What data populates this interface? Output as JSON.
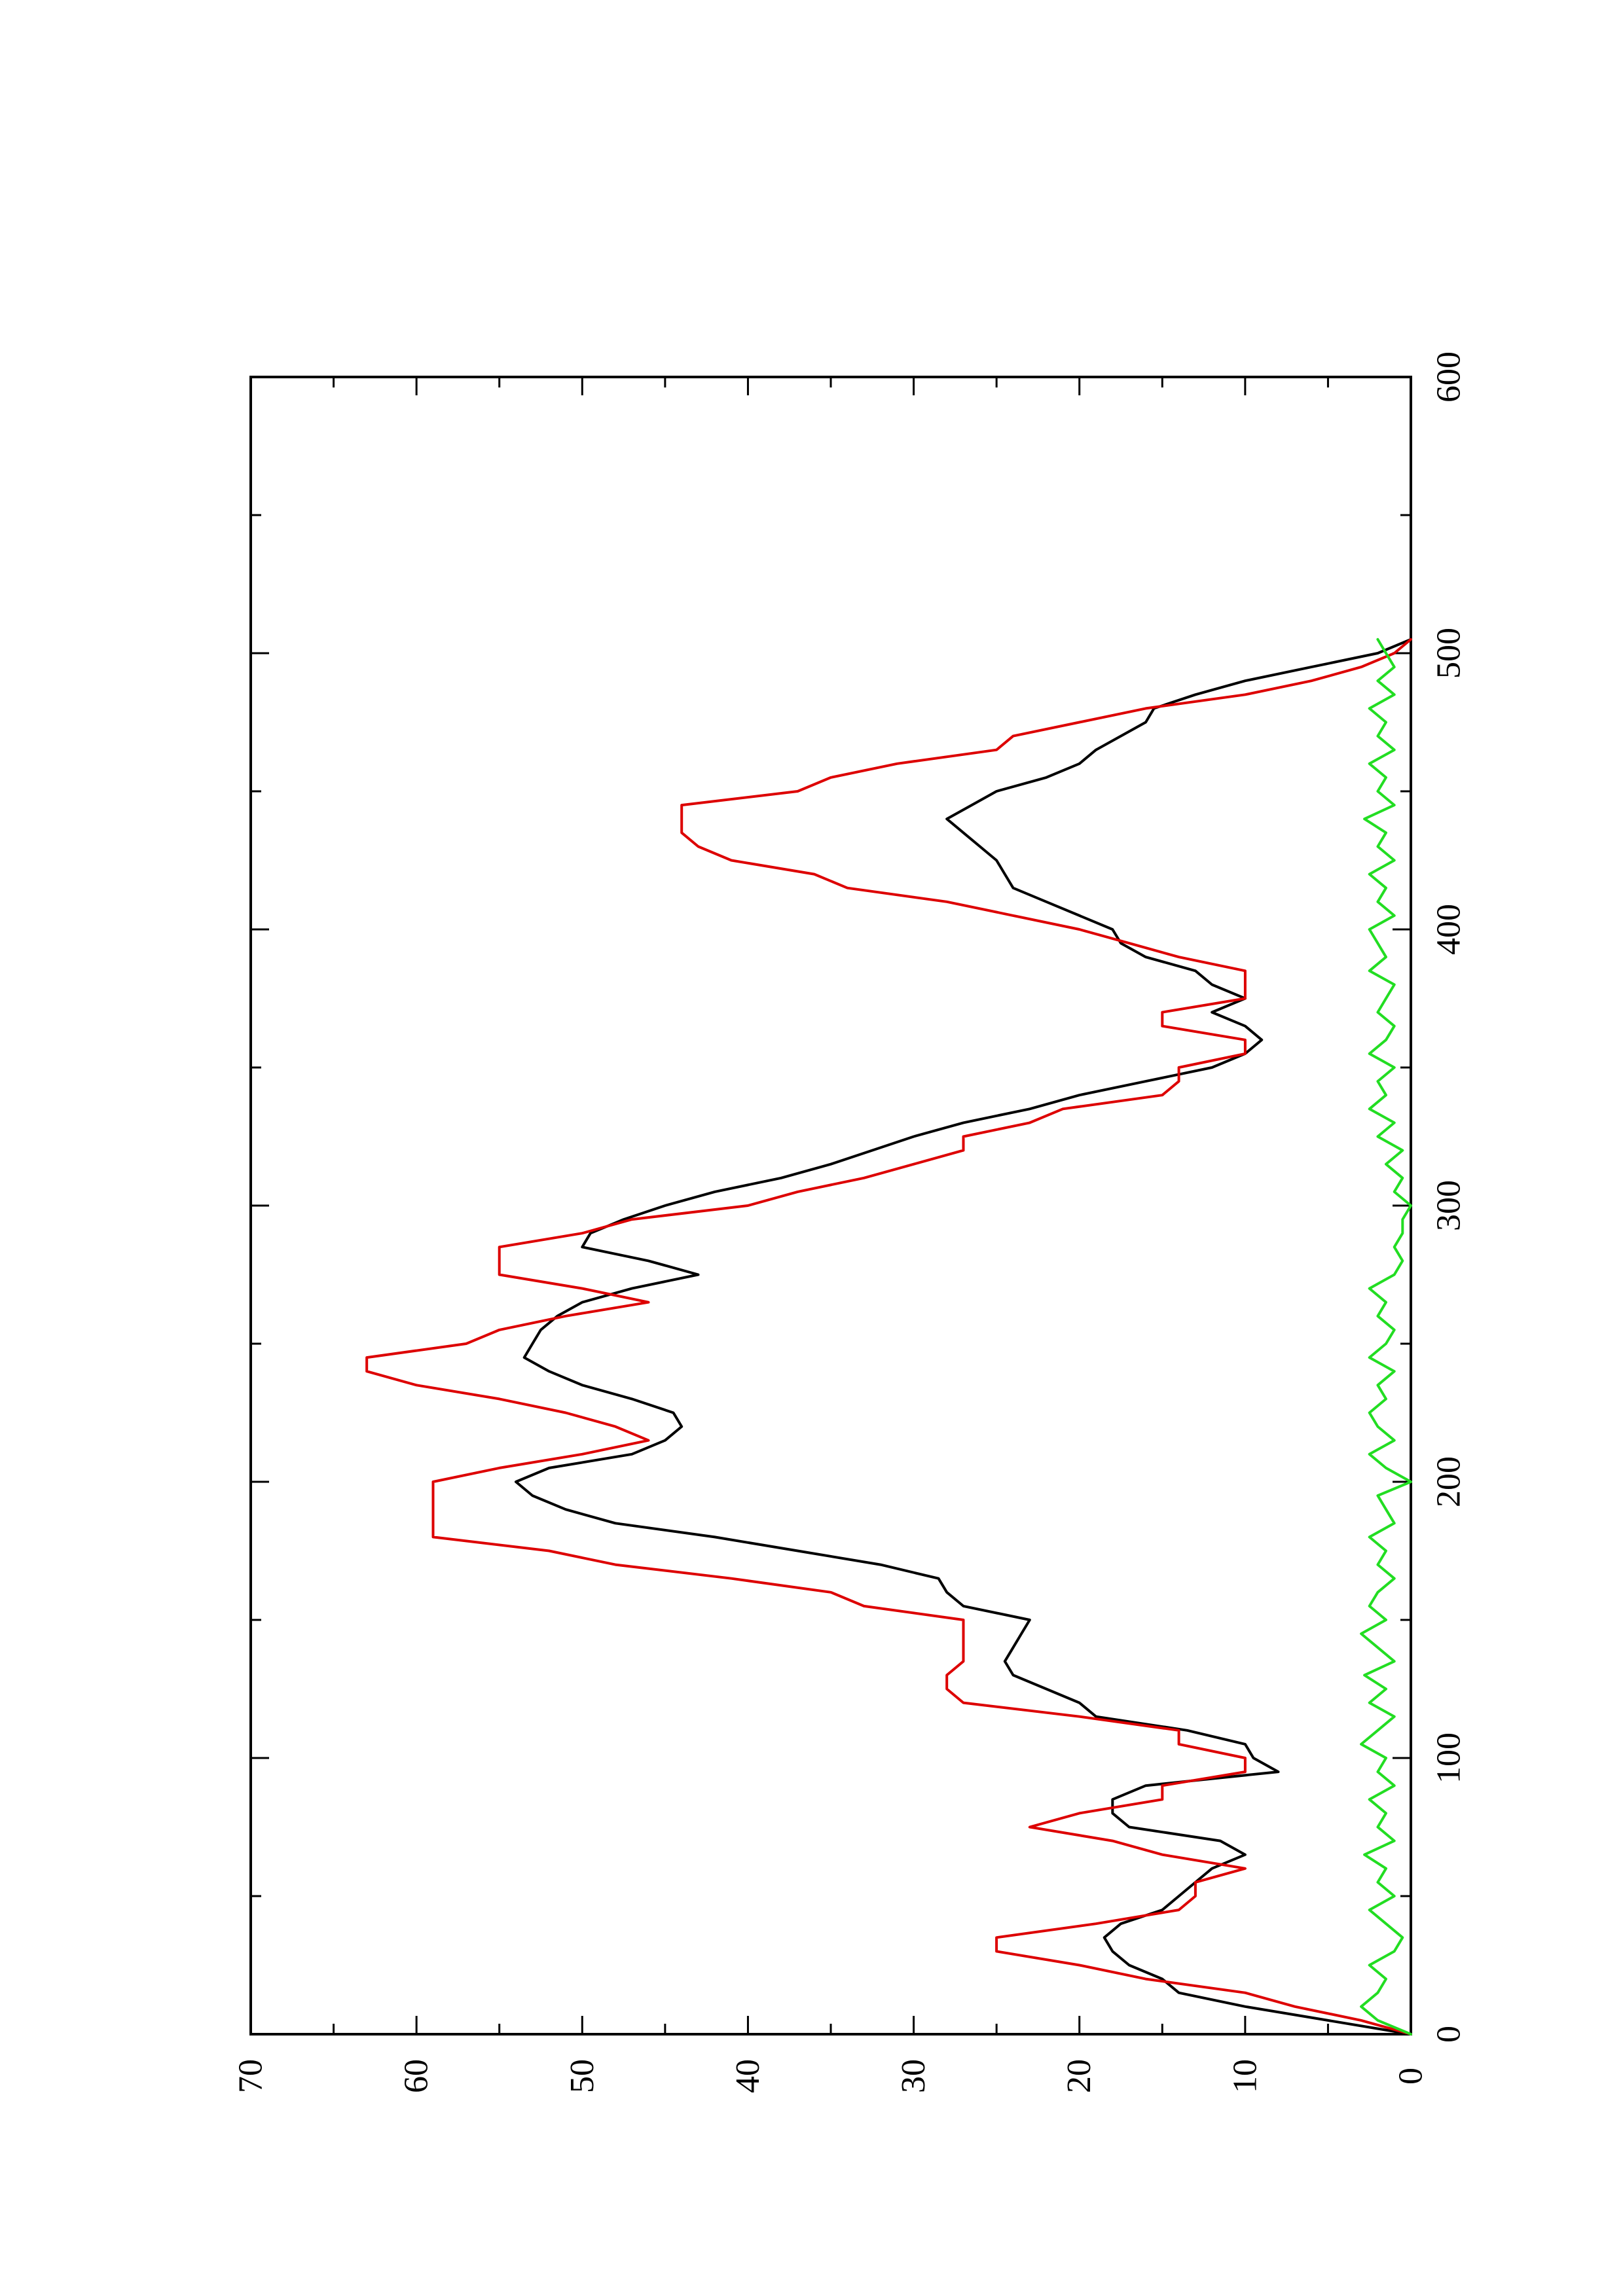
{
  "chart_data": {
    "type": "line",
    "orientation": "rotated-90-ccw",
    "title": "",
    "xlabel": "",
    "ylabel": "",
    "xlim": [
      0,
      600
    ],
    "ylim": [
      0,
      70
    ],
    "x_ticks": [
      0,
      100,
      200,
      300,
      400,
      500,
      600
    ],
    "y_ticks": [
      0,
      10,
      20,
      30,
      40,
      50,
      60,
      70
    ],
    "x_tick_labels": [
      "0",
      "100",
      "200",
      "300",
      "400",
      "500",
      "600"
    ],
    "y_tick_labels": [
      "0",
      "10",
      "20",
      "30",
      "40",
      "50",
      "60",
      "70"
    ],
    "grid": false,
    "legend": "none",
    "series": [
      {
        "color": "#000000",
        "x": [
          0,
          5,
          10,
          15,
          20,
          25,
          30,
          35,
          40,
          45,
          50,
          55,
          60,
          65,
          70,
          75,
          80,
          85,
          90,
          95,
          100,
          105,
          110,
          115,
          120,
          125,
          130,
          135,
          140,
          145,
          150,
          155,
          160,
          165,
          170,
          175,
          180,
          185,
          190,
          195,
          200,
          205,
          210,
          215,
          220,
          225,
          230,
          235,
          240,
          245,
          250,
          255,
          260,
          265,
          270,
          275,
          280,
          285,
          290,
          295,
          300,
          305,
          310,
          315,
          320,
          325,
          330,
          335,
          340,
          345,
          350,
          355,
          360,
          365,
          370,
          375,
          380,
          385,
          390,
          395,
          400,
          405,
          410,
          415,
          420,
          425,
          430,
          435,
          440,
          445,
          450,
          455,
          460,
          465,
          470,
          475,
          480,
          485,
          490,
          495,
          500,
          505
        ],
        "y": [
          0,
          5,
          10,
          14,
          15,
          17,
          18,
          18.5,
          17.5,
          15,
          14,
          13,
          12,
          10,
          11.5,
          17,
          18,
          18,
          16,
          8,
          9.5,
          10,
          13.5,
          19,
          20,
          22,
          24,
          24.5,
          24,
          23.5,
          23,
          27,
          28,
          28.5,
          32,
          37,
          42,
          48,
          51,
          53,
          54,
          52,
          47,
          45,
          44,
          44.5,
          47,
          50,
          52,
          53.5,
          53,
          52.5,
          51.5,
          50,
          47,
          43,
          46,
          50,
          49.5,
          47.5,
          45,
          42,
          38,
          35,
          32.5,
          30,
          27,
          23,
          20,
          16,
          12,
          10,
          9,
          10,
          12,
          10,
          12,
          13,
          16,
          17.5,
          18,
          20,
          22,
          24,
          24.5,
          25,
          26,
          27,
          28,
          26.5,
          25,
          22,
          20,
          19,
          17.5,
          16,
          15.5,
          13,
          10,
          6,
          2,
          0
        ]
      },
      {
        "color": "#dd0000",
        "x": [
          0,
          5,
          10,
          15,
          20,
          25,
          30,
          35,
          40,
          45,
          50,
          55,
          60,
          65,
          70,
          75,
          80,
          85,
          90,
          95,
          100,
          105,
          110,
          115,
          120,
          125,
          130,
          135,
          140,
          145,
          150,
          155,
          160,
          165,
          170,
          175,
          180,
          185,
          190,
          195,
          200,
          205,
          210,
          215,
          220,
          225,
          230,
          235,
          240,
          245,
          250,
          255,
          260,
          265,
          270,
          275,
          280,
          285,
          290,
          295,
          300,
          305,
          310,
          315,
          320,
          325,
          330,
          335,
          340,
          345,
          350,
          355,
          360,
          365,
          370,
          375,
          380,
          385,
          390,
          395,
          400,
          405,
          410,
          415,
          420,
          425,
          430,
          435,
          440,
          445,
          450,
          455,
          460,
          465,
          470,
          475,
          480,
          485,
          490,
          495,
          500,
          505
        ],
        "y": [
          0,
          3,
          7,
          10,
          16,
          20,
          25,
          25,
          19,
          14,
          13,
          13,
          10,
          15,
          18,
          23,
          20,
          15,
          15,
          10,
          10,
          14,
          14,
          20,
          27,
          28,
          28,
          27,
          27,
          27,
          27,
          33,
          35,
          41,
          48,
          52,
          59,
          59,
          59,
          59,
          59,
          55,
          50,
          46,
          48,
          51,
          55,
          60,
          63,
          63,
          57,
          55,
          51,
          46,
          50,
          55,
          55,
          55,
          50,
          47,
          40,
          37,
          33,
          30,
          27,
          27,
          23,
          21,
          15,
          14,
          14,
          10,
          10,
          15,
          15,
          10,
          10,
          10,
          14,
          17,
          20,
          24,
          28,
          34,
          36,
          41,
          43,
          44,
          44,
          44,
          37,
          35,
          31,
          25,
          24,
          20,
          16,
          10,
          6,
          3,
          1,
          0
        ]
      },
      {
        "color": "#22dd22",
        "x": [
          0,
          5,
          10,
          15,
          20,
          25,
          30,
          35,
          40,
          45,
          50,
          55,
          60,
          65,
          70,
          75,
          80,
          85,
          90,
          95,
          100,
          105,
          110,
          115,
          120,
          125,
          130,
          135,
          140,
          145,
          150,
          155,
          160,
          165,
          170,
          175,
          180,
          185,
          190,
          195,
          200,
          205,
          210,
          215,
          220,
          225,
          230,
          235,
          240,
          245,
          250,
          255,
          260,
          265,
          270,
          275,
          280,
          285,
          290,
          295,
          300,
          305,
          310,
          315,
          320,
          325,
          330,
          335,
          340,
          345,
          350,
          355,
          360,
          365,
          370,
          375,
          380,
          385,
          390,
          395,
          400,
          405,
          410,
          415,
          420,
          425,
          430,
          435,
          440,
          445,
          450,
          455,
          460,
          465,
          470,
          475,
          480,
          485,
          490,
          495,
          500,
          505
        ],
        "y": [
          0,
          2,
          3,
          2,
          1.5,
          2.5,
          1,
          0.5,
          1.5,
          2.5,
          1,
          2,
          1.5,
          2.8,
          1,
          2,
          1.5,
          2.5,
          1,
          2,
          1.5,
          3,
          2,
          1,
          2.5,
          1.5,
          2.8,
          1,
          2,
          3,
          1.5,
          2.5,
          2,
          1,
          2,
          1.5,
          2.5,
          1,
          1.5,
          2,
          0,
          1.5,
          2.5,
          1,
          2,
          2.5,
          1.5,
          2,
          1,
          2.5,
          1.5,
          1,
          2,
          1.5,
          2.5,
          1,
          0.5,
          1,
          0.5,
          0.5,
          0,
          1,
          0.5,
          1.5,
          0.5,
          2,
          1,
          2.5,
          1.5,
          2,
          1,
          2.5,
          1.5,
          1,
          2,
          1.5,
          1,
          2.5,
          1.5,
          2,
          2.5,
          1,
          2,
          1.5,
          2.5,
          1,
          2,
          1.5,
          2.8,
          1,
          2,
          1.5,
          2.5,
          1,
          2,
          1.5,
          2.5,
          1,
          2,
          1,
          1.5,
          2
        ]
      }
    ]
  }
}
